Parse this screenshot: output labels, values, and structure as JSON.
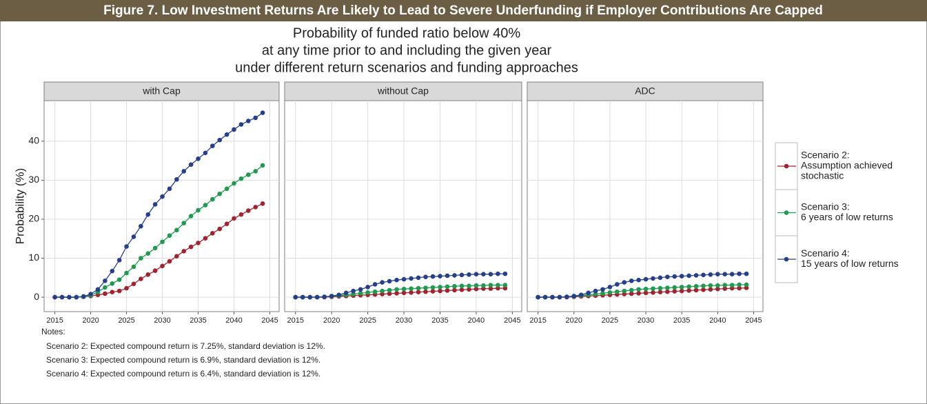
{
  "banner": "Figure 7. Low Investment Returns Are Likely to Lead to Severe Underfunding if Employer Contributions Are Capped",
  "chart_data": {
    "type": "line",
    "title": [
      "Probability of funded ratio below 40%",
      "at any time prior to and including the given year",
      "under different return scenarios and funding approaches"
    ],
    "y_label": "Probability (%)",
    "x": [
      2015,
      2016,
      2017,
      2018,
      2019,
      2020,
      2021,
      2022,
      2023,
      2024,
      2025,
      2026,
      2027,
      2028,
      2029,
      2030,
      2031,
      2032,
      2033,
      2034,
      2035,
      2036,
      2037,
      2038,
      2039,
      2040,
      2041,
      2042,
      2043,
      2044
    ],
    "xlim": [
      2013.5,
      2046.3
    ],
    "xticks": [
      2015,
      2020,
      2025,
      2030,
      2035,
      2040,
      2045
    ],
    "ylim": [
      -3.7,
      50.4
    ],
    "yticks": [
      0,
      10,
      20,
      30,
      40
    ],
    "grid": true,
    "legend": [
      {
        "name": [
          "Scenario 2:",
          "Assumption achieved",
          "stochastic"
        ],
        "color": "#a3222e"
      },
      {
        "name": [
          "Scenario 3:",
          "6 years of low returns"
        ],
        "color": "#1f9a4e"
      },
      {
        "name": [
          "Scenario 4:",
          "15 years of low returns"
        ],
        "color": "#253f8c"
      }
    ],
    "panels": [
      {
        "title": "with Cap",
        "series": [
          {
            "values": [
              0,
              0,
              0,
              0,
              0.1,
              0.3,
              0.6,
              0.9,
              1.3,
              1.6,
              2.3,
              3.4,
              4.7,
              5.8,
              6.8,
              8,
              9.2,
              10.5,
              11.8,
              12.9,
              13.9,
              15.1,
              16.4,
              17.5,
              18.8,
              20.2,
              21.2,
              22.2,
              23.1,
              24.0
            ]
          },
          {
            "values": [
              0,
              0,
              0,
              0,
              0.1,
              0.5,
              1.3,
              2.5,
              3.5,
              4.5,
              6.2,
              7.8,
              10,
              11.2,
              12.6,
              14.2,
              15.8,
              17.2,
              19,
              20.8,
              22.3,
              23.6,
              25.1,
              26.5,
              27.8,
              29.2,
              30.4,
              31.4,
              32.3,
              33.8
            ]
          },
          {
            "values": [
              0,
              0,
              0,
              0,
              0.2,
              0.8,
              2,
              4.2,
              6.7,
              9.5,
              13,
              15.5,
              18.2,
              21.2,
              23.8,
              25.8,
              27.8,
              30.2,
              32.3,
              34,
              35.5,
              37,
              38.8,
              40.3,
              41.7,
              43,
              44.3,
              45.2,
              46,
              47.3
            ]
          }
        ]
      },
      {
        "title": "without Cap",
        "series": [
          {
            "values": [
              0,
              0,
              0,
              0,
              0,
              0.1,
              0.2,
              0.3,
              0.4,
              0.5,
              0.6,
              0.7,
              0.8,
              0.9,
              1,
              1.1,
              1.2,
              1.3,
              1.4,
              1.5,
              1.6,
              1.7,
              1.8,
              1.9,
              2,
              2.1,
              2.2,
              2.2,
              2.3,
              2.3
            ]
          },
          {
            "values": [
              0,
              0,
              0,
              0,
              0.1,
              0.2,
              0.4,
              0.6,
              0.8,
              1,
              1.2,
              1.4,
              1.6,
              1.8,
              2,
              2.1,
              2.2,
              2.3,
              2.4,
              2.5,
              2.6,
              2.7,
              2.8,
              2.9,
              2.9,
              3,
              3,
              3.1,
              3.1,
              3.1
            ]
          },
          {
            "values": [
              0,
              0,
              0,
              0,
              0.1,
              0.3,
              0.6,
              1.1,
              1.6,
              2,
              2.6,
              3.3,
              3.8,
              4.1,
              4.4,
              4.6,
              4.8,
              5,
              5.2,
              5.3,
              5.4,
              5.5,
              5.6,
              5.7,
              5.8,
              5.9,
              5.9,
              5.9,
              6.0,
              6.0
            ]
          }
        ]
      },
      {
        "title": "ADC",
        "series": [
          {
            "values": [
              0,
              0,
              0,
              0,
              0,
              0.1,
              0.2,
              0.3,
              0.4,
              0.5,
              0.6,
              0.7,
              0.8,
              0.9,
              1,
              1.1,
              1.2,
              1.3,
              1.4,
              1.5,
              1.6,
              1.7,
              1.8,
              1.9,
              2,
              2.1,
              2.2,
              2.3,
              2.3,
              2.4
            ]
          },
          {
            "values": [
              0,
              0,
              0,
              0,
              0.1,
              0.2,
              0.4,
              0.6,
              0.8,
              1,
              1.2,
              1.4,
              1.6,
              1.8,
              2,
              2.1,
              2.2,
              2.3,
              2.4,
              2.5,
              2.6,
              2.7,
              2.8,
              2.9,
              3,
              3,
              3.1,
              3.1,
              3.2,
              3.2
            ]
          },
          {
            "values": [
              0,
              0,
              0,
              0,
              0.1,
              0.3,
              0.6,
              1.1,
              1.6,
              2,
              2.6,
              3.3,
              3.8,
              4.2,
              4.4,
              4.6,
              4.8,
              5,
              5.2,
              5.3,
              5.4,
              5.5,
              5.6,
              5.7,
              5.8,
              5.9,
              5.9,
              5.9,
              6.0,
              6.0
            ]
          }
        ]
      }
    ]
  },
  "notes": {
    "heading": "Notes:",
    "lines": [
      "Scenario 2: Expected compound return is 7.25%, standard deviation is 12%.",
      "Scenario 3: Expected compound return is 6.9%, standard deviation is 12%.",
      "Scenario 4: Expected compound return is 6.4%, standard deviation is 12%."
    ]
  }
}
